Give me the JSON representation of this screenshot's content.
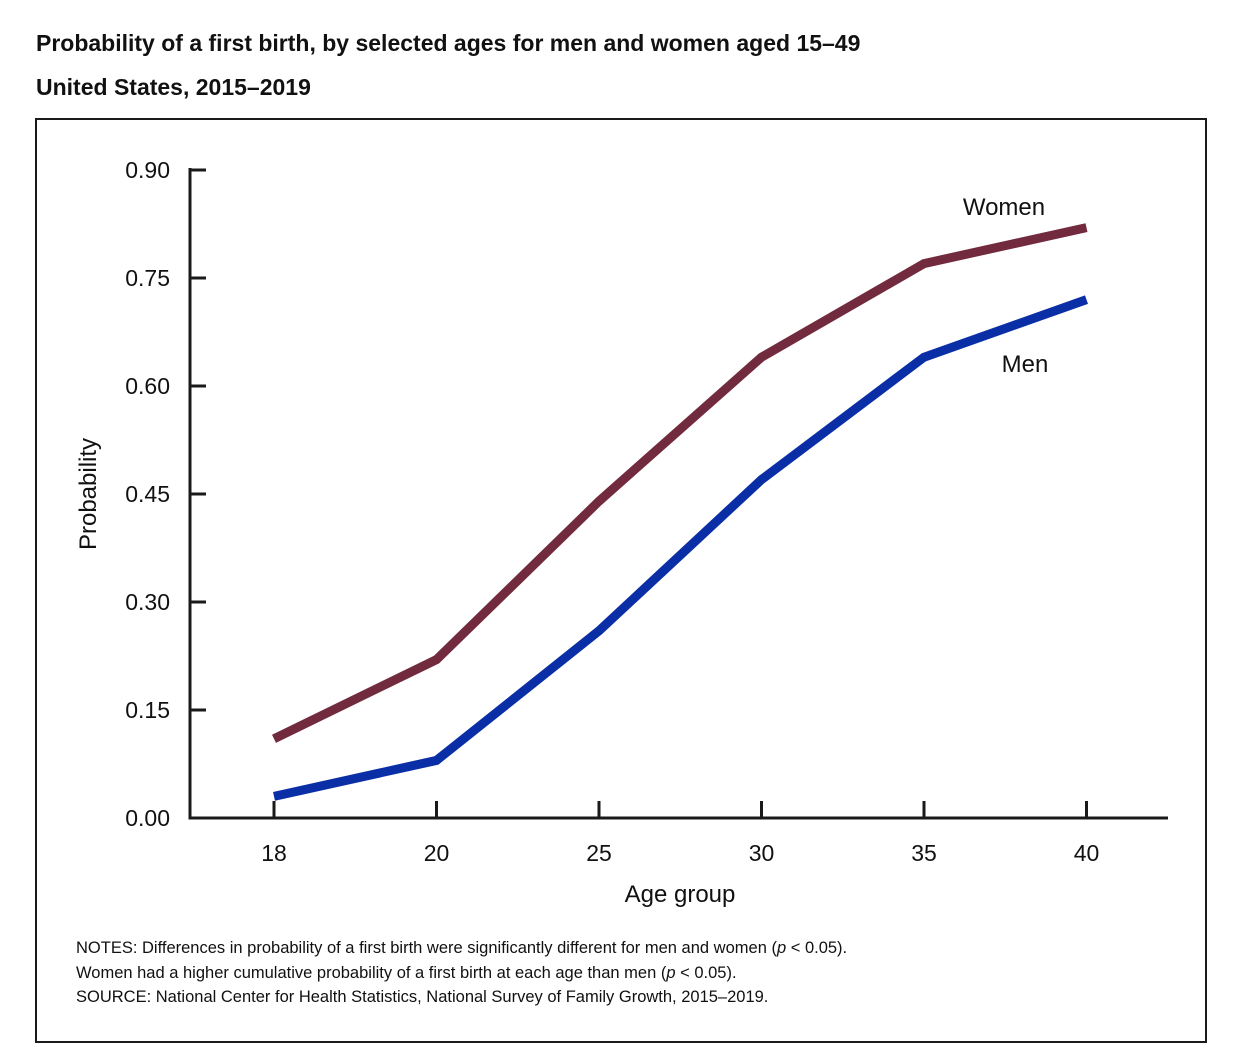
{
  "chart_data": {
    "type": "line",
    "title": "Probability of a first birth, by selected ages for men and women aged 15–49",
    "subtitle": "United States, 2015–2019",
    "xlabel": "Age group",
    "ylabel": "Probability",
    "x": [
      18,
      20,
      25,
      30,
      35,
      40
    ],
    "x_tick_labels": [
      "18",
      "20",
      "25",
      "30",
      "35",
      "40"
    ],
    "ylim": [
      0,
      0.9
    ],
    "y_ticks": [
      0,
      0.15,
      0.3,
      0.45,
      0.6,
      0.75,
      0.9
    ],
    "y_tick_labels": [
      "0.00",
      "0.15",
      "0.30",
      "0.45",
      "0.60",
      "0.75",
      "0.90"
    ],
    "grid": false,
    "legend": "inline labels",
    "series": [
      {
        "name": "Women",
        "color": "#722a3f",
        "values": [
          0.11,
          0.22,
          0.44,
          0.64,
          0.77,
          0.82
        ]
      },
      {
        "name": "Men",
        "color": "#0a2ea6",
        "values": [
          0.03,
          0.08,
          0.26,
          0.47,
          0.64,
          0.72
        ]
      }
    ]
  },
  "notes": {
    "line1_prefix": "NOTES: Differences in probability of a first birth were significantly different for men and women (",
    "line1_p": "p",
    "line1_suffix": " < 0.05).",
    "line2_prefix": "Women had a higher cumulative probability of a first birth at each age than men (",
    "line2_p": "p",
    "line2_suffix": " < 0.05).",
    "source": "SOURCE: National Center for Health Statistics, National Survey of Family Growth, 2015–2019."
  }
}
